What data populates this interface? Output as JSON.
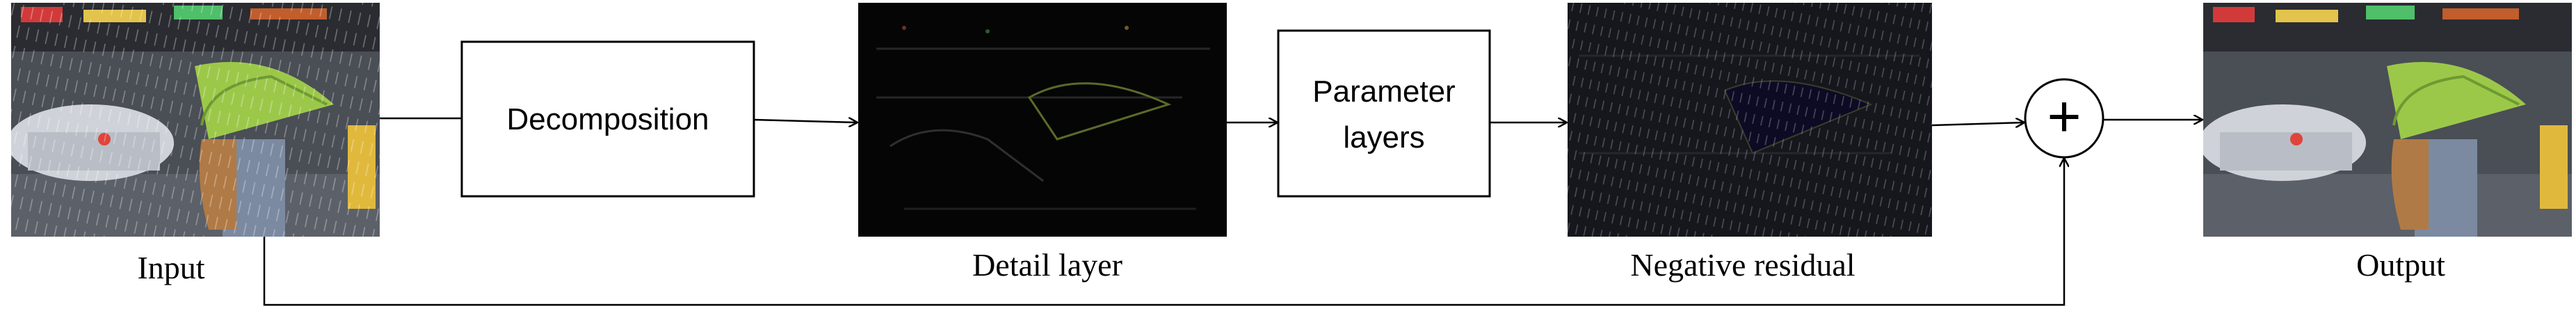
{
  "nodes": {
    "input": {
      "caption": "Input"
    },
    "decomposition": {
      "label": "Decomposition"
    },
    "detail": {
      "caption": "Detail layer"
    },
    "parameter": {
      "label_line1": "Parameter",
      "label_line2": "layers"
    },
    "residual": {
      "caption": "Negative residual"
    },
    "sum": {
      "symbol": "+"
    },
    "output": {
      "caption": "Output"
    }
  },
  "colors": {
    "line": "#000000",
    "umbrella": "#9cc84a",
    "street_dark": "#3a3d42",
    "detail_bg": "#050505",
    "residual_bg": "#15171c"
  }
}
